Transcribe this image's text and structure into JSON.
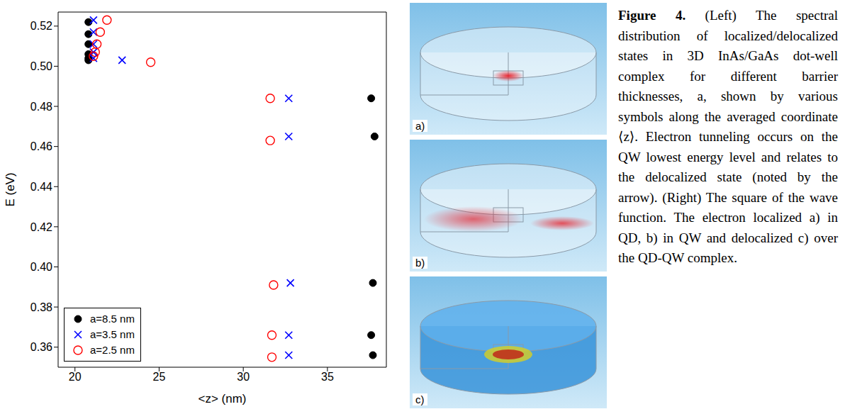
{
  "chart_data": {
    "type": "scatter",
    "xlabel": "<z> (nm)",
    "ylabel": "E (eV)",
    "xlim": [
      19,
      38.5
    ],
    "xticks": [
      20,
      25,
      30,
      35
    ],
    "ylim": [
      0.35,
      0.527
    ],
    "yticks": [
      0.36,
      0.38,
      {
        "value": 0.4,
        "label": "0.40"
      },
      0.42,
      0.44,
      0.46,
      0.48,
      {
        "value": 0.5,
        "label": "0.50"
      },
      0.52
    ],
    "grid": false,
    "legend": "lower left",
    "series": [
      {
        "name": "a=8.5 nm",
        "color": "#000000",
        "marker": "circle",
        "x": [
          20.8,
          20.8,
          20.8,
          20.8,
          20.8,
          20.8,
          37.6,
          37.8,
          37.7,
          37.6,
          37.7
        ],
        "values": [
          0.522,
          0.516,
          0.511,
          0.506,
          0.504,
          0.503,
          0.484,
          0.465,
          0.392,
          0.366,
          0.356
        ]
      },
      {
        "name": "a=3.5 nm",
        "color": "#0000ff",
        "marker": "x",
        "x": [
          21.1,
          21.1,
          21.1,
          21.1,
          21.1,
          22.8,
          32.7,
          32.7,
          32.8,
          32.7,
          32.7
        ],
        "values": [
          0.523,
          0.517,
          0.511,
          0.507,
          0.504,
          0.503,
          0.484,
          0.465,
          0.392,
          0.366,
          0.356
        ]
      },
      {
        "name": "a=2.5 nm",
        "color": "#ff0000",
        "marker": "circle-open",
        "x": [
          21.9,
          21.5,
          21.3,
          21.2,
          21.1,
          24.5,
          31.6,
          31.6,
          31.8,
          31.7,
          31.7
        ],
        "values": [
          0.523,
          0.517,
          0.511,
          0.507,
          0.505,
          0.502,
          0.484,
          0.463,
          0.391,
          0.366,
          0.355
        ]
      }
    ]
  },
  "panels": [
    {
      "label": "a)"
    },
    {
      "label": "b)"
    },
    {
      "label": "c)"
    }
  ],
  "caption": {
    "label": "Figure 4.",
    "text": "(Left) The spectral distribution of localized/delocalized states in 3D InAs/GaAs dot-well complex for different barrier thicknesses, a, shown by various symbols along the averaged coordinate ⟨z⟩. Electron tunneling occurs on the QW lowest energy level and relates to the delocalized state (noted by the arrow). (Right) The square of the wave function. The electron localized a) in QD, b) in QW and delocalized c) over the QD-QW complex."
  }
}
